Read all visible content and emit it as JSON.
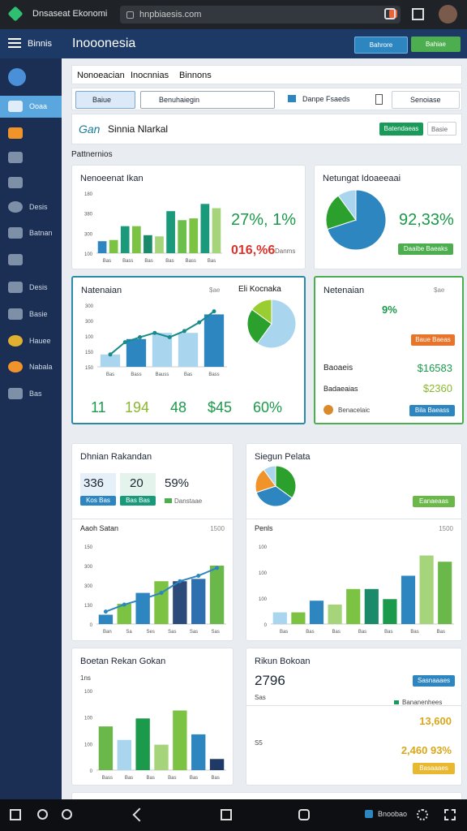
{
  "browser": {
    "tab_title": "Dnsaseat Ekonomi",
    "url": "hnpbiaesis.com"
  },
  "header": {
    "menu": "Binnis",
    "title": "Inooonesia",
    "buttons": [
      "Bahrore",
      "Bahiae"
    ]
  },
  "sidebar": {
    "items": [
      "Ooaa",
      "Desis",
      "Batnan",
      "Desis",
      "Basie",
      "Hauee",
      "Nabala",
      "Bas"
    ]
  },
  "tabs": [
    "Nonoeacian",
    "Inocnnias",
    "Binnons"
  ],
  "filters": [
    "Baiue",
    "Benuhaiegin",
    "Danpe Fsaeds",
    "Senoiase"
  ],
  "section": {
    "brand": "Gan",
    "title": "Sinnia Nlarkal",
    "button": "Batendaeas",
    "select": "Basie",
    "label": "Pattnernios"
  },
  "cards": {
    "a": {
      "title": "Nenoeenat Ikan",
      "stat": "27%, 1%",
      "stat2": "016,%6",
      "note": "Danms"
    },
    "b": {
      "title": "Netungat Idoaeeaai",
      "stat": "92,33%",
      "button": "Daaibe Baeaks"
    },
    "c": {
      "title": "Natenaian",
      "tag": "$ae",
      "legend": "Eli Kocnaka",
      "stats": [
        "11",
        "194",
        "48",
        "$45",
        "60%"
      ]
    },
    "d": {
      "title": "Netenaian",
      "tag": "$ae",
      "stat": "9%",
      "button": "Baue Baeas",
      "rows": [
        [
          "Baoaeis",
          "$16583"
        ],
        [
          "Badaeaias",
          "$2360"
        ]
      ],
      "footer": "Benacelaic",
      "button2": "Bila Baeass"
    },
    "e": {
      "title": "Dhnian Rakandan",
      "boxes": [
        [
          "336",
          "Kos Bas"
        ],
        [
          "20",
          "Bas Bas"
        ],
        [
          "59%",
          "Danstaae"
        ]
      ],
      "subtitle": "Aaoh Satan",
      "tag": "1500"
    },
    "f": {
      "title": "Siegun Pelata",
      "button": "Eanaeaas",
      "subtitle": "Penls",
      "tag": "1500"
    },
    "g": {
      "title": "Boetan Rekan Gokan",
      "label": "1ns"
    },
    "h": {
      "title": "Rikun Bokoan",
      "stat": "2796",
      "button": "Sasnaaaes",
      "label": "Sas",
      "legend": "Bananenhees",
      "stat2": "13,600",
      "label2": "S5",
      "stat3": "2,460 93%",
      "button2": "Basaaaes"
    }
  },
  "charts": {
    "sales": {
      "type": "bar",
      "values": [
        20,
        22,
        45,
        45,
        30,
        28,
        70,
        55,
        58,
        82,
        75
      ],
      "colors": [
        "#2e86c1",
        "#7cc243",
        "#1a9a7a",
        "#7cc243",
        "#1a8a6a",
        "#a6d47a",
        "#1a9a7a",
        "#6bbf4a",
        "#7cc243",
        "#1a9a7a",
        "#a6d47a"
      ],
      "ylim": [
        0,
        100
      ],
      "ylabels": [
        "180",
        "380",
        "300",
        "100"
      ],
      "xlabels": [
        "Bas",
        "Bass",
        "Bas",
        "Bas",
        "Bass",
        "Bas"
      ]
    },
    "trend": {
      "type": "bar",
      "values": [
        20,
        45,
        55,
        55,
        85
      ],
      "colors": [
        "#a9d6ee",
        "#2e86c1",
        "#a9d6ee",
        "#a9d6ee",
        "#2e86c1"
      ],
      "line": [
        20,
        40,
        48,
        55,
        48,
        58,
        72,
        90
      ],
      "line_color": "#1a8a8a",
      "ylim": [
        0,
        100
      ],
      "ylabels": [
        "300",
        "300",
        "100",
        "150",
        "150"
      ],
      "xlabels": [
        "Bas",
        "Bass",
        "Bauss",
        "Bas",
        "Bass"
      ]
    },
    "growth": {
      "type": "bar",
      "values": [
        12,
        26,
        40,
        55,
        55,
        58,
        75
      ],
      "colors": [
        "#2e86c1",
        "#7cc243",
        "#2e86c1",
        "#7cc243",
        "#2c4a7a",
        "#2e6fb0",
        "#6bb84a"
      ],
      "line": [
        16,
        25,
        32,
        40,
        55,
        62,
        72
      ],
      "line_color": "#2e86c1",
      "ylim": [
        0,
        100
      ],
      "ylabels": [
        "150",
        "300",
        "300",
        "130",
        "0"
      ],
      "xlabels": [
        "Ban",
        "Sa",
        "Ses",
        "Sas",
        "Sas",
        "Sas"
      ]
    },
    "peels": {
      "type": "bar",
      "values": [
        15,
        15,
        30,
        25,
        45,
        45,
        32,
        62,
        88,
        80
      ],
      "colors": [
        "#a9d6ee",
        "#7cc243",
        "#2e86c1",
        "#a6d47a",
        "#7cc243",
        "#1a8a6a",
        "#1a9a4a",
        "#2e86c1",
        "#a6d47a",
        "#6bb84a"
      ],
      "ylim": [
        0,
        100
      ],
      "ylabels": [
        "100",
        "100",
        "100",
        "0"
      ],
      "xlabels": [
        "Bas",
        "Bas",
        "Bas",
        "Bas",
        "Bas",
        "Bas",
        "Bas"
      ]
    },
    "boetan": {
      "type": "bar",
      "values": [
        55,
        38,
        65,
        32,
        75,
        45,
        14
      ],
      "colors": [
        "#6bb84a",
        "#a9d6ee",
        "#1a9a4a",
        "#a6d47a",
        "#7cc243",
        "#2e86c1",
        "#1f3a66"
      ],
      "ylim": [
        0,
        100
      ],
      "ylabels": [
        "100",
        "100",
        "100",
        "0"
      ],
      "xlabels": [
        "Bass",
        "Bas",
        "Bas",
        "Bas",
        "Bas",
        "Bas"
      ]
    },
    "share": {
      "type": "pie",
      "values": [
        70,
        20,
        10
      ],
      "colors": [
        "#2e86c1",
        "#2ca02c",
        "#a9d6ee"
      ]
    },
    "mix": {
      "type": "pie",
      "values": [
        60,
        25,
        15
      ],
      "colors": [
        "#a9d6ee",
        "#2ca02c",
        "#9acd32"
      ]
    },
    "segment": {
      "type": "pie",
      "values": [
        35,
        35,
        20,
        10
      ],
      "colors": [
        "#2ca02c",
        "#2e86c1",
        "#f0932b",
        "#a9d6ee"
      ]
    }
  },
  "bottom_nav": {
    "label": "Bnoobao"
  }
}
